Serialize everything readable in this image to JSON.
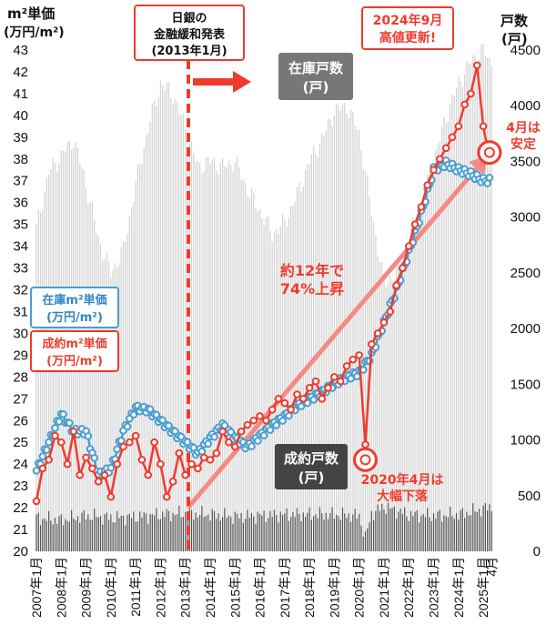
{
  "chart_data": {
    "type": "line",
    "left_axis": {
      "title_line1": "m²単価",
      "title_line2": "(万円/m²)",
      "ylim": [
        20,
        43
      ],
      "ticks": [
        20,
        21,
        22,
        23,
        24,
        25,
        26,
        27,
        28,
        29,
        30,
        31,
        32,
        33,
        34,
        35,
        36,
        37,
        38,
        39,
        40,
        41,
        42,
        43
      ]
    },
    "right_axis": {
      "title_line1": "戸数",
      "title_line2": "(戸)",
      "ylim": [
        0,
        4500
      ],
      "ticks": [
        0,
        500,
        1000,
        1500,
        2000,
        2500,
        3000,
        3500,
        4000,
        4500
      ]
    },
    "x_axis": {
      "start_year": 2007,
      "end_year": 2025,
      "tick_labels": [
        "2007年1月",
        "2008年1月",
        "2009年1月",
        "2010年1月",
        "2011年1月",
        "2012年1月",
        "2013年1月",
        "2014年1月",
        "2015年1月",
        "2016年1月",
        "2017年1月",
        "2018年1月",
        "2019年1月",
        "2020年1月",
        "2021年1月",
        "2022年1月",
        "2023年1月",
        "2024年1月",
        "2025年1月"
      ],
      "last_label": "4月"
    },
    "series": [
      {
        "name": "在庫戸数 (戸)",
        "kind": "bar",
        "axis": "right",
        "color": "#d4d4d4",
        "x": [
          2007.0,
          2007.5,
          2008.0,
          2008.5,
          2009.0,
          2009.5,
          2010.0,
          2010.5,
          2011.0,
          2011.5,
          2012.0,
          2012.5,
          2013.0,
          2013.5,
          2014.0,
          2014.5,
          2015.0,
          2015.5,
          2016.0,
          2016.5,
          2017.0,
          2017.5,
          2018.0,
          2018.5,
          2019.0,
          2019.5,
          2020.0,
          2020.5,
          2021.0,
          2021.5,
          2022.0,
          2022.5,
          2023.0,
          2023.5,
          2024.0,
          2024.5,
          2025.0,
          2025.25
        ],
        "values": [
          2900,
          3400,
          3550,
          3700,
          3300,
          2800,
          2500,
          2700,
          3300,
          3800,
          4200,
          4100,
          3800,
          3450,
          3500,
          3450,
          3500,
          3250,
          3050,
          2850,
          2950,
          3200,
          3500,
          3700,
          3950,
          4000,
          3750,
          3050,
          2400,
          2500,
          2800,
          3100,
          3500,
          3900,
          4200,
          4400,
          4500,
          4400
        ]
      },
      {
        "name": "成約戸数 (戸)",
        "kind": "bar",
        "axis": "right",
        "color": "#555555",
        "x": [
          2007.0,
          2008.0,
          2009.0,
          2010.0,
          2011.0,
          2012.0,
          2013.0,
          2014.0,
          2015.0,
          2016.0,
          2017.0,
          2018.0,
          2019.0,
          2020.0,
          2020.25,
          2020.5,
          2021.0,
          2022.0,
          2023.0,
          2024.0,
          2025.0,
          2025.25
        ],
        "values": [
          300,
          280,
          320,
          300,
          310,
          330,
          340,
          330,
          310,
          320,
          330,
          330,
          330,
          320,
          120,
          340,
          400,
          330,
          320,
          330,
          380,
          400
        ]
      },
      {
        "name": "在庫m²単価 (万円/m²)",
        "kind": "line",
        "axis": "left",
        "color": "#4a9ed0",
        "x": [
          2007.0,
          2007.5,
          2008.0,
          2008.5,
          2009.0,
          2009.5,
          2010.0,
          2010.5,
          2011.0,
          2011.5,
          2012.0,
          2012.5,
          2013.0,
          2013.5,
          2014.0,
          2014.5,
          2015.0,
          2015.5,
          2016.0,
          2016.5,
          2017.0,
          2017.5,
          2018.0,
          2018.5,
          2019.0,
          2019.5,
          2020.0,
          2020.5,
          2021.0,
          2021.5,
          2022.0,
          2022.5,
          2023.0,
          2023.5,
          2024.0,
          2024.5,
          2025.0,
          2025.25
        ],
        "values": [
          23.7,
          25.0,
          26.3,
          25.5,
          25.5,
          23.5,
          23.8,
          25.5,
          26.6,
          26.5,
          26.0,
          25.5,
          25.0,
          24.5,
          25.2,
          25.8,
          25.2,
          24.8,
          25.3,
          25.8,
          26.2,
          26.7,
          27.0,
          27.3,
          27.7,
          28.0,
          28.2,
          29.0,
          30.5,
          32.0,
          33.7,
          35.5,
          37.5,
          37.8,
          37.5,
          37.3,
          37.0,
          37.0
        ]
      },
      {
        "name": "成約m²単価 (万円/m²)",
        "kind": "line",
        "axis": "left",
        "color": "#ef3b2d",
        "x": [
          2007.0,
          2007.25,
          2007.5,
          2007.75,
          2008.0,
          2008.25,
          2008.5,
          2008.75,
          2009.0,
          2009.25,
          2009.5,
          2009.75,
          2010.0,
          2010.25,
          2010.5,
          2010.75,
          2011.0,
          2011.25,
          2011.5,
          2011.75,
          2012.0,
          2012.25,
          2012.5,
          2012.75,
          2013.0,
          2013.25,
          2013.5,
          2013.75,
          2014.0,
          2014.25,
          2014.5,
          2014.75,
          2015.0,
          2015.25,
          2015.5,
          2015.75,
          2016.0,
          2016.25,
          2016.5,
          2016.75,
          2017.0,
          2017.25,
          2017.5,
          2017.75,
          2018.0,
          2018.25,
          2018.5,
          2018.75,
          2019.0,
          2019.25,
          2019.5,
          2019.75,
          2020.0,
          2020.25,
          2020.5,
          2020.75,
          2021.0,
          2021.25,
          2021.5,
          2021.75,
          2022.0,
          2022.25,
          2022.5,
          2022.75,
          2023.0,
          2023.25,
          2023.5,
          2023.75,
          2024.0,
          2024.25,
          2024.5,
          2024.75,
          2025.0,
          2025.25
        ],
        "values": [
          22.3,
          23.8,
          24.2,
          25.3,
          25.0,
          24.0,
          25.5,
          23.5,
          24.3,
          23.8,
          23.2,
          23.5,
          22.5,
          24.0,
          24.8,
          25.0,
          25.3,
          24.2,
          23.5,
          25.0,
          24.0,
          22.5,
          23.2,
          24.5,
          23.5,
          24.0,
          23.8,
          24.3,
          24.2,
          24.5,
          25.5,
          25.0,
          24.8,
          25.5,
          25.8,
          26.0,
          26.2,
          26.0,
          26.5,
          27.0,
          26.8,
          26.5,
          27.2,
          27.0,
          27.5,
          27.8,
          27.0,
          27.5,
          28.0,
          27.8,
          28.5,
          28.8,
          29.0,
          24.9,
          29.5,
          30.0,
          30.5,
          31.0,
          32.2,
          33.0,
          34.0,
          35.0,
          35.8,
          36.8,
          37.5,
          38.0,
          38.5,
          39.0,
          39.5,
          40.5,
          41.0,
          42.3,
          39.5,
          38.0
        ]
      }
    ],
    "trend_arrow": {
      "from": {
        "x": 2013.1,
        "y": 22.0
      },
      "to": {
        "x": 2025.2,
        "y": 38.2
      },
      "color": "#f58a84"
    },
    "boj_line_x": 2013.0,
    "marker_2020": {
      "x": 2020.25,
      "y": 24.2
    },
    "marker_2025": {
      "x": 2025.25,
      "y": 38.3
    }
  },
  "annotations": {
    "boj_line1": "日銀の",
    "boj_line2": "金融緩和発表",
    "boj_line3": "(2013年1月)",
    "high_line1": "2024年9月",
    "high_line2": "高値更新!",
    "inventory_count_line1": "在庫戸数",
    "inventory_count_line2": "(戸)",
    "contract_count_line1": "成約戸数",
    "contract_count_line2": "(戸)",
    "trend_line1": "約12年で",
    "trend_line2": "74%上昇",
    "inventory_price_line1": "在庫m²単価",
    "inventory_price_line2": "(万円/m²)",
    "contract_price_line1": "成約m²単価",
    "contract_price_line2": "(万円/m²)",
    "covid_line1": "2020年4月は",
    "covid_line2": "大幅下落",
    "stable_line1": "4月は",
    "stable_line2": "安定"
  },
  "colors": {
    "red": "#ef3b2d",
    "blue": "#4a9ed0",
    "inventory_bar": "#d4d4d4",
    "contract_bar": "#555555",
    "trend": "#f58a84"
  }
}
